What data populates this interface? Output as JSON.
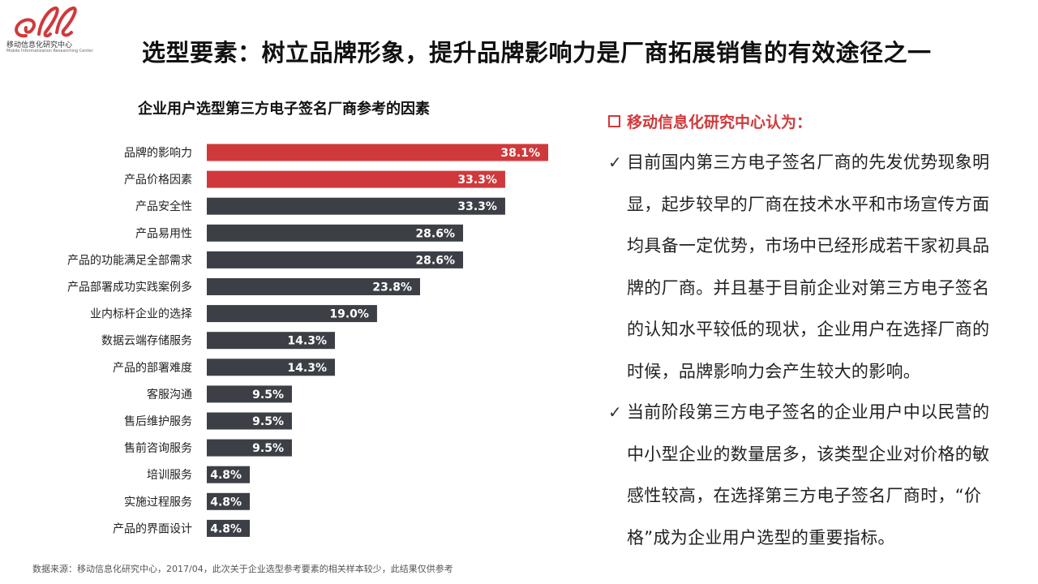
{
  "logo": {
    "name": "移动信息化研究中心",
    "sub": "Mobile Informatization Researching Center",
    "primary": "#d0393b"
  },
  "header": {
    "title": "选型要素：树立品牌形象，提升品牌影响力是厂商拓展销售的有效途径之一"
  },
  "chart_title": "企业用户选型第三方电子签名厂商参考的因素",
  "chart_data": {
    "type": "bar",
    "orientation": "horizontal",
    "title": "企业用户选型第三方电子签名厂商参考的因素",
    "categories": [
      "品牌的影响力",
      "产品价格因素",
      "产品安全性",
      "产品易用性",
      "产品的功能满足全部需求",
      "产品部署成功实践案例多",
      "业内标杆企业的选择",
      "数据云端存储服务",
      "产品的部署难度",
      "客服沟通",
      "售后维护服务",
      "售前咨询服务",
      "培训服务",
      "实施过程服务",
      "产品的界面设计"
    ],
    "values": [
      38.1,
      33.3,
      33.3,
      28.6,
      28.6,
      23.8,
      19.0,
      14.3,
      14.3,
      9.5,
      9.5,
      9.5,
      4.8,
      4.8,
      4.8
    ],
    "labels": [
      "38.1%",
      "33.3%",
      "33.3%",
      "28.6%",
      "28.6%",
      "23.8%",
      "19.0%",
      "14.3%",
      "14.3%",
      "9.5%",
      "9.5%",
      "9.5%",
      "4.8%",
      "4.8%",
      "4.8%"
    ],
    "highlight_count": 2,
    "colors": {
      "highlight": "#d0393b",
      "normal": "#3d3f46",
      "label": "#ffffff"
    }
  },
  "right": {
    "heading": "移动信息化研究中心认为：",
    "bullets": [
      "目前国内第三方电子签名厂商的先发优势现象明显，起步较早的厂商在技术水平和市场宣传方面均具备一定优势，市场中已经形成若干家初具品牌的厂商。并且基于目前企业对第三方电子签名的认知水平较低的现状，企业用户在选择厂商的时候，品牌影响力会产生较大的影响。",
      "当前阶段第三方电子签名的企业用户中以民营的中小型企业的数量居多，该类型企业对价格的敏感性较高，在选择第三方电子签名厂商时，“价格”成为企业用户选型的重要指标。"
    ]
  },
  "footer": {
    "source": "数据来源：移动信息化研究中心，2017/04，此次关于企业选型参考要素的相关样本较少，此结果仅供参考"
  }
}
